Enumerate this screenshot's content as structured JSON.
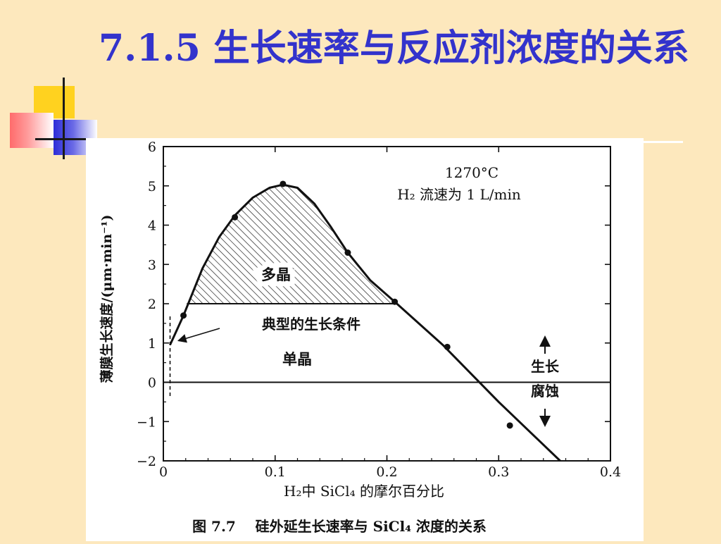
{
  "slide": {
    "title": "7.1.5  生长速率与反应剂浓度的关系"
  },
  "colors": {
    "background": "#fde8bd",
    "title": "#3333cc",
    "decoration_yellow": "#ffd21f",
    "decoration_red": "#ff6b6b",
    "decoration_blue": "#2d2dd8",
    "plot_ink": "#111111"
  },
  "chart_data": {
    "type": "line",
    "title": "",
    "xlabel": "H₂中 SiCl₄ 的摩尔百分比",
    "ylabel": "薄膜生长速度/(μm·min⁻¹)",
    "xlim": [
      0,
      0.4
    ],
    "ylim": [
      -2,
      6
    ],
    "x_ticks": [
      0,
      0.1,
      0.2,
      0.3,
      0.4
    ],
    "x_tick_labels": [
      "0",
      "0.1",
      "0.2",
      "0.3",
      "0.4"
    ],
    "y_ticks": [
      -2,
      -1,
      0,
      1,
      2,
      3,
      4,
      5,
      6
    ],
    "y_tick_labels": [
      "−2",
      "−1",
      "0",
      "1",
      "2",
      "3",
      "4",
      "5",
      "6"
    ],
    "grid": false,
    "series": [
      {
        "points": [
          {
            "x": 0.018,
            "y": 1.7
          },
          {
            "x": 0.064,
            "y": 4.2
          },
          {
            "x": 0.107,
            "y": 5.05
          },
          {
            "x": 0.165,
            "y": 3.3
          },
          {
            "x": 0.207,
            "y": 2.05
          },
          {
            "x": 0.254,
            "y": 0.9
          },
          {
            "x": 0.31,
            "y": -1.1
          }
        ],
        "curve": [
          {
            "x": 0.006,
            "y": 0.95
          },
          {
            "x": 0.018,
            "y": 1.7
          },
          {
            "x": 0.035,
            "y": 2.9
          },
          {
            "x": 0.05,
            "y": 3.7
          },
          {
            "x": 0.064,
            "y": 4.25
          },
          {
            "x": 0.08,
            "y": 4.7
          },
          {
            "x": 0.095,
            "y": 4.95
          },
          {
            "x": 0.107,
            "y": 5.03
          },
          {
            "x": 0.12,
            "y": 4.95
          },
          {
            "x": 0.135,
            "y": 4.55
          },
          {
            "x": 0.15,
            "y": 3.95
          },
          {
            "x": 0.165,
            "y": 3.3
          },
          {
            "x": 0.185,
            "y": 2.6
          },
          {
            "x": 0.207,
            "y": 2.05
          },
          {
            "x": 0.25,
            "y": 0.95
          },
          {
            "x": 0.3,
            "y": -0.5
          },
          {
            "x": 0.355,
            "y": -2.0
          }
        ]
      }
    ],
    "hatched_region": {
      "label": "多晶",
      "above_y": 2
    },
    "reference_lines": [
      {
        "axis": "y",
        "value": 0
      },
      {
        "axis": "y",
        "value": 2,
        "x_from": 0.021,
        "x_to": 0.207
      },
      {
        "axis": "x",
        "value": 0.006,
        "y_from": -0.35,
        "y_to": 1.7,
        "dashed": true
      }
    ],
    "annotations": {
      "temperature": "1270°C",
      "flow": "H₂ 流速为 1 L/min",
      "typical_condition": "典型的生长条件",
      "single_crystal": "单晶",
      "growth": "生长",
      "etch": "腐蚀"
    },
    "caption": "图 7.7    硅外延生长速率与 SiCl₄ 浓度的关系"
  }
}
